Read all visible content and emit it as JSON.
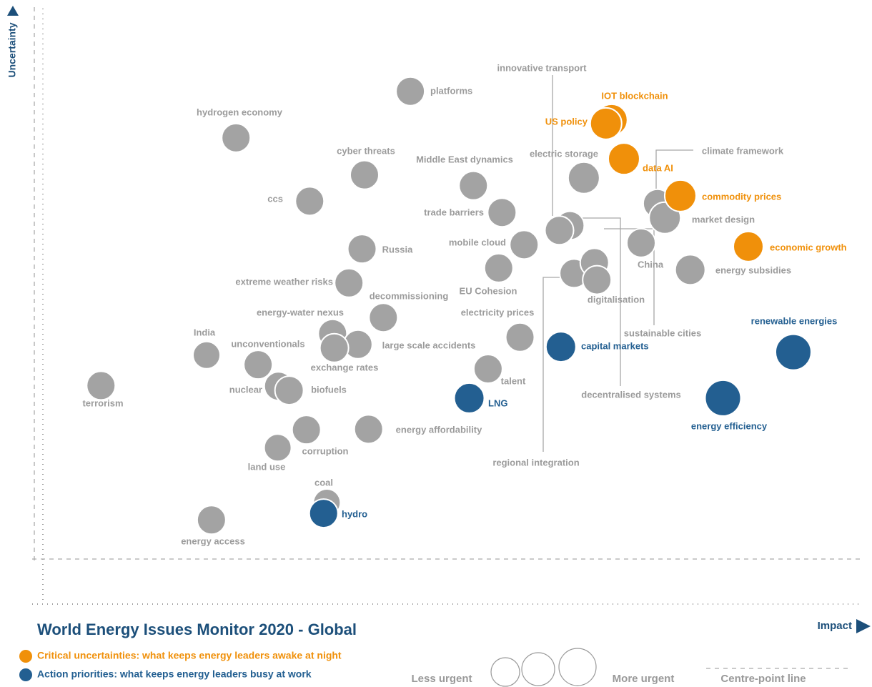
{
  "chart_data": {
    "type": "bubble",
    "title": "World Energy Issues Monitor 2020 - Global",
    "x_label": "Impact",
    "y_label": "Uncertainty",
    "xlim": [
      0,
      100
    ],
    "ylim": [
      0,
      100
    ],
    "series": [
      {
        "color": "#a3a3a3",
        "labels": [
          "platforms",
          "hydrogen economy",
          "cyber threats",
          "ccs",
          "Middle East dynamics",
          "electric storage",
          "trade barriers",
          "mobile cloud",
          "EU Cohesion",
          "innovative transport",
          "decentralised systems",
          "regional integration",
          "sustainable cities",
          "digitalisation",
          "climate framework",
          "market design",
          "China",
          "energy subsidies",
          "Russia",
          "extreme weather risks",
          "decommissioning",
          "energy-water nexus",
          "large scale accidents",
          "exchange rates",
          "unconventionals",
          "India",
          "nuclear",
          "biofuels",
          "terrorism",
          "electricity prices",
          "talent",
          "energy affordability",
          "corruption",
          "land use",
          "coal",
          "energy access"
        ],
        "x": [
          44.9,
          23.6,
          39.3,
          32.6,
          52.6,
          66.1,
          56.1,
          58.8,
          55.7,
          64.4,
          63.1,
          64.9,
          67.4,
          67.7,
          75.1,
          76.0,
          73.1,
          79.1,
          39.0,
          37.4,
          41.6,
          35.4,
          38.5,
          35.6,
          26.3,
          20.0,
          28.8,
          30.1,
          7.1,
          58.3,
          54.4,
          39.8,
          32.2,
          28.7,
          34.7,
          20.6
        ],
        "y": [
          85.9,
          78.1,
          71.9,
          67.5,
          70.1,
          71.4,
          65.6,
          60.2,
          56.3,
          63.4,
          62.6,
          55.4,
          57.2,
          54.3,
          67.1,
          64.7,
          60.5,
          56.0,
          59.5,
          53.8,
          48.0,
          45.3,
          43.5,
          42.9,
          40.1,
          41.7,
          36.5,
          35.8,
          36.6,
          44.7,
          39.4,
          29.3,
          29.2,
          26.2,
          17.0,
          14.1
        ],
        "sizes": [
          20,
          20,
          20,
          20,
          20,
          22,
          20,
          20,
          20,
          20,
          20,
          20,
          20,
          20,
          20,
          22,
          20,
          21,
          20,
          20,
          20,
          20,
          20,
          20,
          20,
          19,
          20,
          20,
          20,
          20,
          20,
          20,
          20,
          19,
          19,
          20
        ]
      },
      {
        "name": "Critical uncertainties: what keeps energy leaders awake at night",
        "color": "#f0900a",
        "labels": [
          "IOT blockchain",
          "US policy",
          "data AI",
          "commodity prices",
          "economic growth"
        ],
        "x": [
          69.5,
          68.8,
          71.0,
          77.9,
          86.2
        ],
        "y": [
          81.1,
          80.5,
          74.6,
          68.4,
          59.9
        ],
        "sizes": [
          22,
          22,
          22,
          22,
          21
        ]
      },
      {
        "name": "Action priorities: what keeps energy leaders busy at work",
        "color": "#235f91",
        "labels": [
          "capital markets",
          "renewable energies",
          "energy efficiency",
          "LNG",
          "hydro"
        ],
        "x": [
          63.3,
          91.7,
          83.1,
          52.1,
          34.3
        ],
        "y": [
          43.1,
          42.2,
          34.5,
          34.5,
          15.2
        ],
        "sizes": [
          21,
          25,
          25,
          21,
          20
        ]
      }
    ],
    "size_legend": [
      "Less urgent",
      "More urgent"
    ],
    "centre_line_label": "Centre-point line"
  }
}
